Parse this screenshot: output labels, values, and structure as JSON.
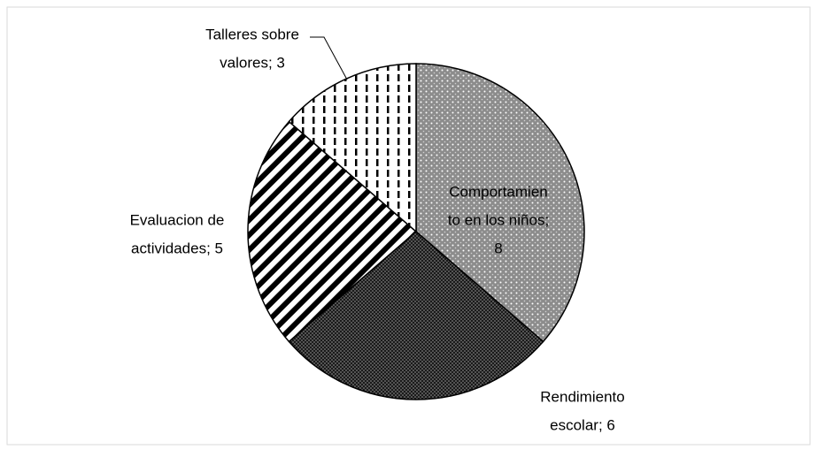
{
  "chart_data": {
    "type": "pie",
    "values": [
      8,
      6,
      5,
      3
    ],
    "value_labels": [
      [
        "Comportamien",
        "to en los niños;",
        "8"
      ],
      [
        "Rendimiento",
        "escolar; 6"
      ],
      [
        "Evaluacion de",
        "actividades; 5"
      ],
      [
        "Talleres sobre",
        "valores; 3"
      ]
    ],
    "fills": [
      "light-dots",
      "dark-dots",
      "diagonal-stripes",
      "vertical-dashes"
    ],
    "start_angle": 0,
    "direction": "clockwise"
  }
}
